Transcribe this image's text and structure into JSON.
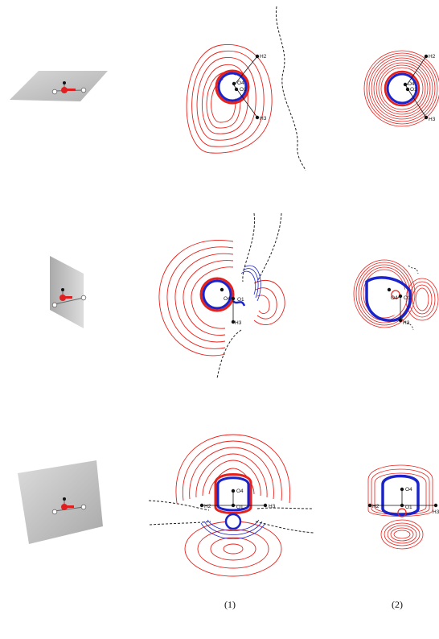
{
  "columns": [
    "(1)",
    "(2)"
  ],
  "rows": [
    {
      "col1_labels": [
        "H2",
        "O4",
        "O1",
        "H3"
      ],
      "col2_labels": [
        "H2",
        "O4",
        "O1",
        "H3"
      ]
    },
    {
      "col1_labels": [
        "O4",
        "O1",
        "H3"
      ],
      "col2_labels": [
        "O4",
        "O1",
        "H3"
      ]
    },
    {
      "col1_labels": [
        "O4",
        "H2",
        "O1",
        "H3"
      ],
      "col2_labels": [
        "O4",
        "H2",
        "O1",
        "H3"
      ]
    }
  ],
  "colors": {
    "positive_contour": "#e8201a",
    "negative_contour": "#1a24c8",
    "zero_contour": "#222222",
    "atom_oxygen": "#e02020",
    "plane": "#c8c8c8"
  }
}
